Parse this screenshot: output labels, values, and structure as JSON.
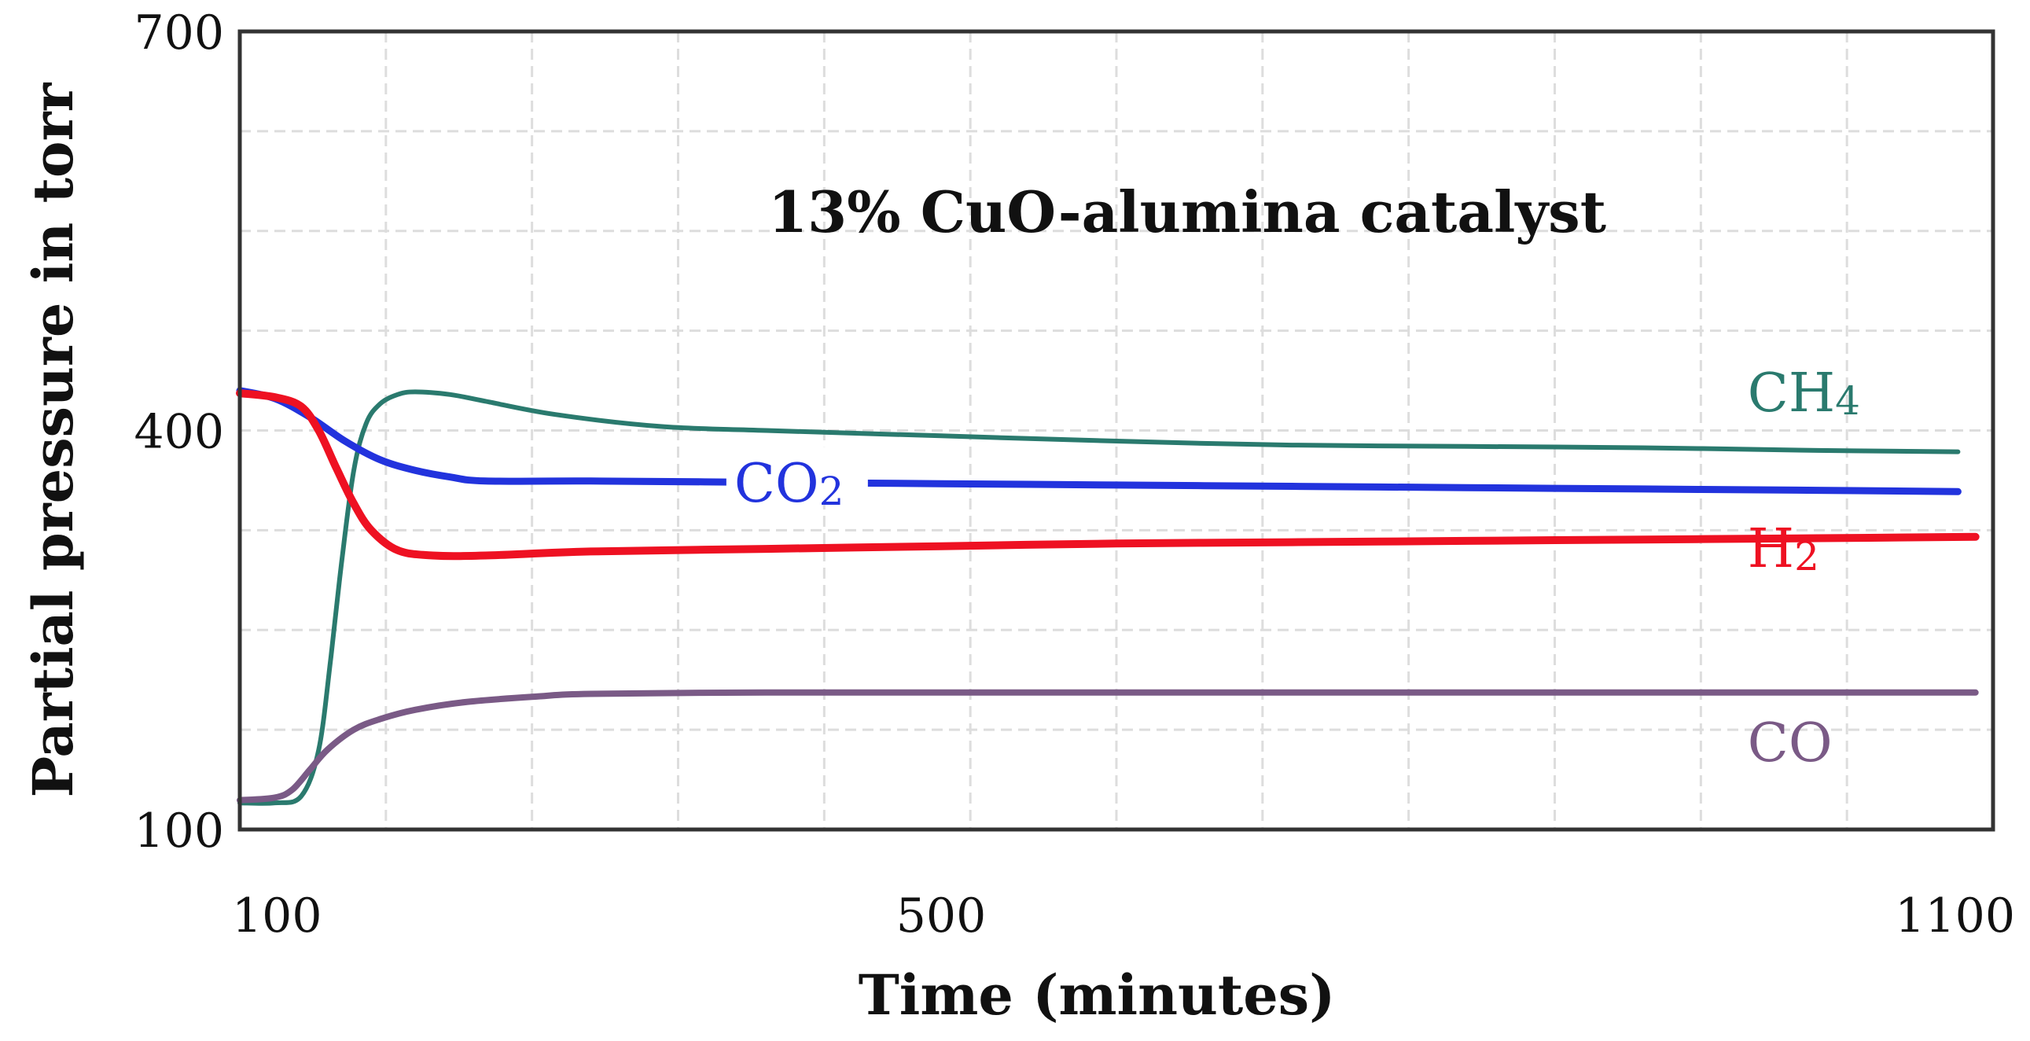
{
  "chart_data": {
    "type": "line",
    "title": "13% CuO-alumina catalyst",
    "xlabel": "Time (minutes)",
    "ylabel": "Partial pressure in torr",
    "xlim": [
      100,
      1100
    ],
    "ylim": [
      100,
      700
    ],
    "xticks": [
      {
        "value": 100,
        "label": "100"
      },
      {
        "value": 500,
        "label": "500"
      },
      {
        "value": 1100,
        "label": "1100"
      }
    ],
    "yticks": [
      {
        "value": 100,
        "label": "100"
      },
      {
        "value": 400,
        "label": "400"
      },
      {
        "value": 700,
        "label": "700"
      }
    ],
    "grid": true,
    "series": [
      {
        "name": "CH4",
        "label_main": "CH",
        "label_sub": "4",
        "color": "#2a7a6e",
        "label_at": [
          960,
          425
        ],
        "x": [
          100,
          120,
          135,
          145,
          152,
          158,
          165,
          172,
          180,
          190,
          200,
          220,
          240,
          280,
          340,
          400,
          500,
          600,
          700,
          800,
          900,
          1000,
          1080
        ],
        "y": [
          120,
          120,
          125,
          160,
          230,
          300,
          370,
          405,
          420,
          427,
          429,
          427,
          422,
          412,
          403,
          400,
          396,
          392,
          389,
          388,
          387,
          385,
          384
        ]
      },
      {
        "name": "CO2",
        "label_main": "CO",
        "label_sub": "2",
        "color": "#2233dd",
        "label_at": [
          382,
          357
        ],
        "x": [
          100,
          120,
          140,
          160,
          180,
          200,
          220,
          240,
          300,
          400,
          500,
          600,
          700,
          800,
          900,
          1000,
          1080
        ],
        "y": [
          430,
          424,
          410,
          392,
          378,
          370,
          365,
          362,
          362,
          361,
          360,
          359,
          358,
          357,
          356,
          355,
          354
        ]
      },
      {
        "name": "H2",
        "label_main": "H",
        "label_sub": "2",
        "color": "#ee1122",
        "label_at": [
          960,
          308
        ],
        "x": [
          100,
          120,
          135,
          145,
          155,
          165,
          175,
          190,
          210,
          240,
          300,
          400,
          500,
          600,
          700,
          800,
          900,
          1000,
          1090
        ],
        "y": [
          428,
          425,
          418,
          400,
          372,
          345,
          325,
          310,
          306,
          306,
          309,
          311,
          313,
          315,
          316,
          317,
          318,
          319,
          320
        ]
      },
      {
        "name": "CO",
        "label_main": "CO",
        "label_sub": "",
        "color": "#7a5a86",
        "label_at": [
          960,
          162
        ],
        "x": [
          100,
          120,
          130,
          140,
          150,
          165,
          180,
          200,
          230,
          270,
          300,
          400,
          500,
          600,
          700,
          800,
          900,
          1000,
          1090
        ],
        "y": [
          122,
          124,
          130,
          145,
          160,
          175,
          183,
          190,
          196,
          200,
          202,
          203,
          203,
          203,
          203,
          203,
          203,
          203,
          203
        ]
      }
    ]
  }
}
